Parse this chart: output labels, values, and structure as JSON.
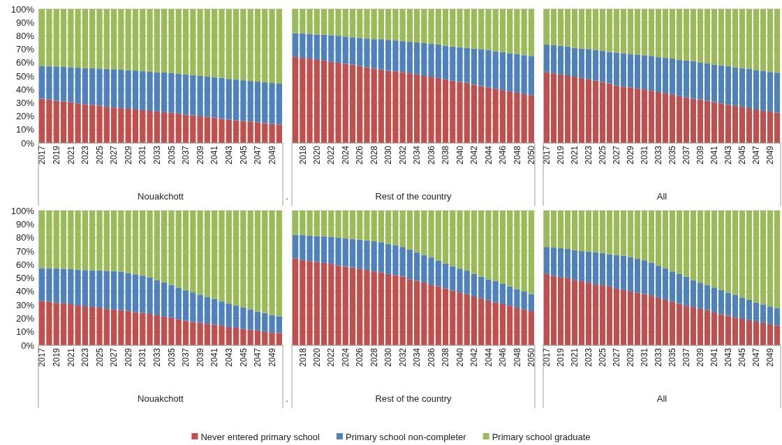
{
  "chart_data": [
    {
      "type": "bar",
      "stacked": true,
      "xlabel": "Nouakchott",
      "annotations": [
        "."
      ],
      "grid": "y",
      "ylim": [
        0,
        100
      ],
      "yticks": [
        {
          "value": 0,
          "label": "0%"
        },
        {
          "value": 10,
          "label": "10%"
        },
        {
          "value": 20,
          "label": "20%"
        },
        {
          "value": 30,
          "label": "30%"
        },
        {
          "value": 40,
          "label": "40%"
        },
        {
          "value": 50,
          "label": "50%"
        },
        {
          "value": 60,
          "label": "60%"
        },
        {
          "value": 70,
          "label": "70%"
        },
        {
          "value": 80,
          "label": "80%"
        },
        {
          "value": 90,
          "label": "90%"
        },
        {
          "value": 100,
          "label": "100%"
        }
      ],
      "categories": [
        "2017",
        null,
        "2019",
        null,
        "2021",
        null,
        "2023",
        null,
        "2025",
        null,
        "2027",
        null,
        "2029",
        null,
        "2031",
        null,
        "2033",
        null,
        "2035",
        null,
        "2037",
        null,
        "2039",
        null,
        "2041",
        null,
        "2043",
        null,
        "2045",
        null,
        "2047",
        null,
        "2049",
        null
      ],
      "series": [
        {
          "color": "#c0504d",
          "values": [
            33,
            32.5,
            31.5,
            31,
            30.5,
            29.5,
            29,
            28.5,
            28,
            27,
            26.5,
            26,
            25.5,
            25,
            24.5,
            24,
            23.5,
            23,
            22.5,
            22,
            21,
            20.5,
            20,
            19.5,
            19,
            18,
            17.5,
            17,
            16.5,
            16,
            15.5,
            14.8,
            14.3,
            13.8
          ]
        },
        {
          "color": "#4f81bd",
          "values": [
            24.3,
            24.7,
            25.6,
            25.8,
            26.1,
            26.7,
            26.8,
            27.2,
            27.6,
            28.3,
            28.6,
            28.7,
            28.8,
            29.1,
            29.1,
            29.1,
            29.2,
            29.6,
            29.6,
            29.6,
            30.1,
            30.1,
            30.1,
            30.1,
            30.1,
            30.6,
            30.3,
            30.3,
            30.3,
            30.3,
            30.3,
            30.5,
            30.5,
            30.5
          ]
        },
        {
          "color": "#9bbb59",
          "values": [
            42.7,
            42.8,
            42.9,
            43.2,
            43.4,
            43.8,
            44.2,
            44.3,
            44.4,
            44.7,
            44.9,
            45.3,
            45.7,
            45.9,
            46.4,
            46.9,
            47.3,
            47.4,
            47.9,
            48.4,
            48.9,
            49.4,
            49.9,
            50.4,
            50.9,
            51.4,
            52.2,
            52.7,
            53.2,
            53.7,
            54.2,
            54.7,
            55.2,
            55.7
          ]
        }
      ]
    },
    {
      "type": "bar",
      "stacked": true,
      "xlabel": "Rest of the country",
      "grid": "y",
      "ylim": [
        0,
        100
      ],
      "tick_labels": "x",
      "yticks": [
        {
          "value": 0,
          "label": null
        },
        {
          "value": 10,
          "label": null
        },
        {
          "value": 20,
          "label": null
        },
        {
          "value": 30,
          "label": null
        },
        {
          "value": 40,
          "label": null
        },
        {
          "value": 50,
          "label": null
        },
        {
          "value": 60,
          "label": null
        },
        {
          "value": 70,
          "label": null
        },
        {
          "value": 80,
          "label": null
        },
        {
          "value": 90,
          "label": null
        },
        {
          "value": 100,
          "label": null
        }
      ],
      "categories": [
        null,
        "2018",
        null,
        "2020",
        null,
        "2022",
        null,
        "2024",
        null,
        "2026",
        null,
        "2028",
        null,
        "2030",
        null,
        "2032",
        null,
        "2034",
        null,
        "2036",
        null,
        "2038",
        null,
        "2040",
        null,
        "2042",
        null,
        "2044",
        null,
        "2046",
        null,
        "2048",
        null,
        "2050"
      ],
      "series": [
        {
          "color": "#c0504d",
          "values": [
            64.5,
            63.5,
            63,
            62,
            61.5,
            60.5,
            60,
            59,
            58.5,
            57.5,
            56.5,
            55.5,
            55,
            54,
            53.5,
            53,
            52,
            51,
            50,
            49.5,
            48.5,
            47.5,
            46.5,
            45.5,
            45,
            43.5,
            42.5,
            41.5,
            40.5,
            39.5,
            38.5,
            37.5,
            36.5,
            35.5
          ]
        },
        {
          "color": "#4f81bd",
          "values": [
            17.5,
            18.5,
            18.5,
            19,
            19.5,
            20,
            20,
            20.5,
            20.5,
            21,
            21.5,
            22,
            22.5,
            23,
            23,
            23,
            23.5,
            24,
            24.5,
            24.5,
            25,
            25,
            25.5,
            26,
            26,
            27,
            27.5,
            28,
            28,
            28.5,
            28.5,
            29,
            29,
            29.5
          ]
        },
        {
          "color": "#9bbb59",
          "values": [
            18,
            18,
            18.5,
            19,
            19,
            19.5,
            20,
            20.5,
            21,
            21.5,
            22,
            22.5,
            22.5,
            23,
            23.5,
            24,
            24.5,
            25,
            25.5,
            26,
            26.5,
            27.5,
            28,
            28.5,
            29,
            29.5,
            30,
            30.5,
            31.5,
            32,
            33,
            33.5,
            34.5,
            35
          ]
        }
      ]
    },
    {
      "type": "bar",
      "stacked": true,
      "xlabel": "All",
      "grid": "y",
      "ylim": [
        0,
        100
      ],
      "tick_labels": "x",
      "yticks": [
        {
          "value": 0,
          "label": null
        },
        {
          "value": 10,
          "label": null
        },
        {
          "value": 20,
          "label": null
        },
        {
          "value": 30,
          "label": null
        },
        {
          "value": 40,
          "label": null
        },
        {
          "value": 50,
          "label": null
        },
        {
          "value": 60,
          "label": null
        },
        {
          "value": 70,
          "label": null
        },
        {
          "value": 80,
          "label": null
        },
        {
          "value": 90,
          "label": null
        },
        {
          "value": 100,
          "label": null
        }
      ],
      "categories": [
        "2017",
        null,
        "2019",
        null,
        "2021",
        null,
        "2023",
        null,
        "2025",
        null,
        "2027",
        null,
        "2029",
        null,
        "2031",
        null,
        "2033",
        null,
        "2035",
        null,
        "2037",
        null,
        "2039",
        null,
        "2041",
        null,
        "2043",
        null,
        "2045",
        null,
        "2047",
        null,
        "2049",
        null
      ],
      "series": [
        {
          "color": "#c0504d",
          "values": [
            53,
            52,
            51,
            50.5,
            49.5,
            48.5,
            47.5,
            46.5,
            45.5,
            44.5,
            43,
            42,
            41.5,
            40.5,
            40,
            39,
            38,
            37,
            36,
            35,
            34,
            33,
            32.5,
            31.5,
            30.5,
            29.5,
            28.5,
            28,
            27,
            26,
            25,
            24,
            23.5,
            22.5
          ]
        },
        {
          "color": "#4f81bd",
          "values": [
            20.5,
            21,
            21.5,
            21.5,
            21.5,
            22,
            22.5,
            23,
            23.5,
            23.5,
            24.5,
            25,
            25,
            25.5,
            25.5,
            26,
            26,
            26.5,
            27,
            27,
            27.5,
            28,
            27.5,
            28,
            28,
            28.5,
            29,
            28.5,
            29,
            29.5,
            29.5,
            30,
            29.5,
            30
          ]
        },
        {
          "color": "#9bbb59",
          "values": [
            26.5,
            27,
            27.5,
            28,
            29,
            29.5,
            30,
            30.5,
            31,
            32,
            32.5,
            33,
            33.5,
            34,
            34.5,
            35,
            36,
            36.5,
            37,
            38,
            38.5,
            39,
            40,
            40.5,
            41.5,
            42,
            42.5,
            43.5,
            44,
            44.5,
            45.5,
            46,
            47,
            47.5
          ]
        }
      ]
    },
    {
      "type": "bar",
      "stacked": true,
      "xlabel": "Nouakchott",
      "annotations": [
        "."
      ],
      "grid": "y",
      "ylim": [
        0,
        100
      ],
      "yticks": [
        {
          "value": 0,
          "label": "0%"
        },
        {
          "value": 10,
          "label": "10%"
        },
        {
          "value": 20,
          "label": "20%"
        },
        {
          "value": 30,
          "label": "30%"
        },
        {
          "value": 40,
          "label": "40%"
        },
        {
          "value": 50,
          "label": "50%"
        },
        {
          "value": 60,
          "label": "60%"
        },
        {
          "value": 70,
          "label": "70%"
        },
        {
          "value": 80,
          "label": "80%"
        },
        {
          "value": 90,
          "label": "90%"
        },
        {
          "value": 100,
          "label": "100%"
        }
      ],
      "categories": [
        "2017",
        null,
        "2019",
        null,
        "2021",
        null,
        "2023",
        null,
        "2025",
        null,
        "2027",
        null,
        "2029",
        null,
        "2031",
        null,
        "2033",
        null,
        "2035",
        null,
        "2037",
        null,
        "2039",
        null,
        "2041",
        null,
        "2043",
        null,
        "2045",
        null,
        "2047",
        null,
        "2049",
        null
      ],
      "series": [
        {
          "color": "#c0504d",
          "values": [
            33,
            32.5,
            31.5,
            31,
            30.5,
            29.5,
            29,
            28.5,
            28,
            27,
            26.5,
            26,
            25.5,
            24.5,
            24,
            23.3,
            22.3,
            21.3,
            20.3,
            19.3,
            18.3,
            17.3,
            16.8,
            16,
            15.3,
            14.5,
            13.5,
            13,
            12,
            11.5,
            11,
            10,
            9.5,
            9
          ]
        },
        {
          "color": "#4f81bd",
          "values": [
            24.3,
            24.7,
            25.6,
            25.8,
            26.1,
            26.7,
            26.8,
            27.2,
            27.6,
            28.3,
            28.6,
            28.7,
            28.2,
            28.2,
            27.7,
            26.9,
            25.9,
            25.5,
            24.5,
            23.5,
            22.5,
            22,
            20.7,
            20,
            19.2,
            18,
            17.5,
            16.5,
            16,
            15,
            14,
            14,
            13,
            12.5
          ]
        },
        {
          "color": "#9bbb59",
          "values": [
            42.7,
            42.8,
            42.9,
            43.2,
            43.4,
            43.8,
            44.2,
            44.3,
            44.4,
            44.7,
            44.9,
            45.3,
            46.3,
            47.3,
            48.3,
            49.8,
            51.8,
            53.2,
            55.2,
            57.2,
            59.2,
            60.7,
            62.5,
            64,
            65.5,
            67.5,
            69,
            70.5,
            72,
            73.5,
            75,
            76,
            77.5,
            78.5
          ]
        }
      ]
    },
    {
      "type": "bar",
      "stacked": true,
      "xlabel": "Rest of the country",
      "grid": "y",
      "ylim": [
        0,
        100
      ],
      "tick_labels": "x",
      "yticks": [
        {
          "value": 0,
          "label": null
        },
        {
          "value": 10,
          "label": null
        },
        {
          "value": 20,
          "label": null
        },
        {
          "value": 30,
          "label": null
        },
        {
          "value": 40,
          "label": null
        },
        {
          "value": 50,
          "label": null
        },
        {
          "value": 60,
          "label": null
        },
        {
          "value": 70,
          "label": null
        },
        {
          "value": 80,
          "label": null
        },
        {
          "value": 90,
          "label": null
        },
        {
          "value": 100,
          "label": null
        }
      ],
      "categories": [
        null,
        "2018",
        null,
        "2020",
        null,
        "2022",
        null,
        "2024",
        null,
        "2026",
        null,
        "2028",
        null,
        "2030",
        null,
        "2032",
        null,
        "2034",
        null,
        "2036",
        null,
        "2038",
        null,
        "2040",
        null,
        "2042",
        null,
        "2044",
        null,
        "2046",
        null,
        "2048",
        null,
        "2050"
      ],
      "series": [
        {
          "color": "#c0504d",
          "values": [
            64.4,
            63.3,
            62.6,
            61.8,
            61.2,
            60.4,
            59.3,
            58.3,
            57.8,
            56.9,
            55.9,
            54.8,
            54,
            52.9,
            52.1,
            51,
            49.1,
            47.9,
            46.7,
            45,
            43.8,
            42.2,
            40.7,
            39.3,
            37.9,
            36.3,
            34.8,
            33.2,
            31.8,
            30.6,
            29.4,
            28,
            26.5,
            25.4
          ]
        },
        {
          "color": "#4f81bd",
          "values": [
            17.6,
            18.7,
            18.9,
            19.2,
            19.8,
            20,
            20.6,
            21.1,
            21.1,
            21.5,
            22,
            22.5,
            22.5,
            22.5,
            22.3,
            22,
            22,
            21.1,
            20.3,
            20.2,
            19,
            18.5,
            18.1,
            17.6,
            17.5,
            16.6,
            16.2,
            15.8,
            15.8,
            15.1,
            14.2,
            13.5,
            13.5,
            12.7
          ]
        },
        {
          "color": "#9bbb59",
          "values": [
            18,
            18,
            18.5,
            19,
            19,
            19.6,
            20.1,
            20.6,
            21.1,
            21.6,
            22.1,
            22.7,
            23.5,
            24.6,
            25.6,
            27,
            28.9,
            31,
            33,
            34.8,
            37.2,
            39.3,
            41.2,
            43.1,
            44.6,
            47.1,
            49,
            51,
            52.4,
            54.3,
            56.4,
            58.5,
            60,
            61.9
          ]
        }
      ]
    },
    {
      "type": "bar",
      "stacked": true,
      "xlabel": "All",
      "grid": "y",
      "ylim": [
        0,
        100
      ],
      "tick_labels": "x",
      "legend": "bottom",
      "yticks": [
        {
          "value": 0,
          "label": null
        },
        {
          "value": 10,
          "label": null
        },
        {
          "value": 20,
          "label": null
        },
        {
          "value": 30,
          "label": null
        },
        {
          "value": 40,
          "label": null
        },
        {
          "value": 50,
          "label": null
        },
        {
          "value": 60,
          "label": null
        },
        {
          "value": 70,
          "label": null
        },
        {
          "value": 80,
          "label": null
        },
        {
          "value": 90,
          "label": null
        },
        {
          "value": 100,
          "label": null
        }
      ],
      "categories": [
        "2017",
        null,
        "2019",
        null,
        "2021",
        null,
        "2023",
        null,
        "2025",
        null,
        "2027",
        null,
        "2029",
        null,
        "2031",
        null,
        "2033",
        null,
        "2035",
        null,
        "2037",
        null,
        "2039",
        null,
        "2041",
        null,
        "2043",
        null,
        "2045",
        null,
        "2047",
        null,
        "2049",
        null
      ],
      "series": [
        {
          "name": "Never entered primary school",
          "color": "#c0504d",
          "values": [
            52.9,
            51.4,
            50.3,
            50,
            48.6,
            47.6,
            46.5,
            45,
            44.6,
            43.6,
            42,
            41,
            40,
            39.1,
            38.1,
            36.7,
            35.3,
            33.7,
            32.4,
            30.8,
            29.4,
            28.4,
            27,
            26,
            24.4,
            23,
            22,
            20.6,
            19.7,
            18.7,
            17.6,
            16.6,
            15.6,
            14.7
          ]
        },
        {
          "name": "Primary school non-completer",
          "color": "#4f81bd",
          "values": [
            20.1,
            21.1,
            21.7,
            21.5,
            22,
            22.3,
            23.1,
            24,
            23.9,
            24,
            25,
            25.4,
            25.6,
            25.1,
            25,
            24.5,
            23.9,
            23.6,
            22.4,
            22.1,
            21.5,
            20,
            19.5,
            18.6,
            18.5,
            18,
            17.1,
            16.8,
            15.6,
            15,
            14.1,
            13.7,
            13.3,
            13
          ]
        },
        {
          "name": "Primary school graduate",
          "color": "#9bbb59",
          "values": [
            27,
            27.5,
            28,
            28.5,
            29.4,
            30.1,
            30.4,
            31,
            31.5,
            32.4,
            33,
            33.6,
            34.4,
            35.8,
            36.9,
            38.8,
            40.8,
            42.7,
            45.2,
            47.1,
            49.1,
            51.6,
            53.5,
            55.4,
            57.1,
            59,
            60.9,
            62.6,
            64.7,
            66.3,
            68.3,
            69.7,
            71.1,
            72.3
          ]
        }
      ]
    }
  ]
}
